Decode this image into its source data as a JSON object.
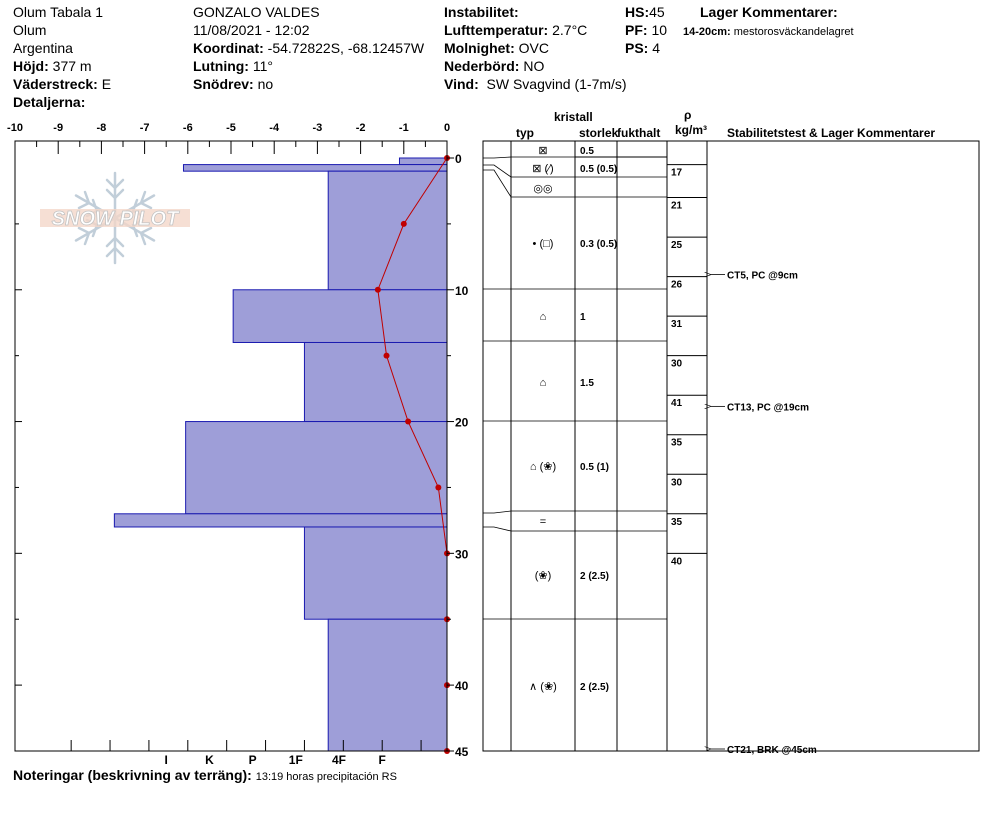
{
  "header": {
    "col1": {
      "site": "Olum Tabala 1",
      "location": "Olum",
      "country": "Argentina",
      "elevation_label": "Höjd:",
      "elevation_value": "377 m",
      "aspect_label": "Väderstreck:",
      "aspect_value": "E",
      "details_label": "Detaljerna:"
    },
    "col2": {
      "observer": "GONZALO VALDES",
      "datetime": "11/08/2021 - 12:02",
      "coord_label": "Koordinat:",
      "coord_value": "-54.72822S, -68.12457W",
      "slope_label": "Lutning:",
      "slope_value": "11°",
      "drift_label": "Snödrev:",
      "drift_value": "no"
    },
    "col3": {
      "stability_label": "Instabilitet:",
      "airtemp_label": "Lufttemperatur:",
      "airtemp_value": "2.7°C",
      "sky_label": "Molnighet:",
      "sky_value": "OVC",
      "precip_label": "Nederbörd:",
      "precip_value": "NO",
      "wind_label": "Vind:",
      "wind_value": "SW Svagvind (1-7m/s)"
    },
    "col4": {
      "hs_label": "HS:",
      "hs_value": "45",
      "pf_label": "PF:",
      "pf_value": "10",
      "ps_label": "PS:",
      "ps_value": "4"
    },
    "col5": {
      "title": "Lager Kommentarer:",
      "comment_range": "14-20cm:",
      "comment_text": "mestorosväckandelagret"
    }
  },
  "logo_text": "SNOW PILOT",
  "table_headers": {
    "crystal": "kristall",
    "type": "typ",
    "size": "storlek",
    "moisture": "fukthalt",
    "rho": "ρ",
    "density_unit": "kg/m³",
    "stability": "Stabilitetstest & Lager Kommentarer"
  },
  "notes": {
    "label": "Noteringar (beskrivning av terräng):",
    "text": "13:19 horas precipitación RS"
  },
  "chart_data": {
    "type": "bar",
    "title": "",
    "xlabel": "",
    "ylabel": "",
    "x_axis_top": {
      "range": [
        -10,
        0
      ],
      "ticks": [
        "-10",
        "-9",
        "-8",
        "-7",
        "-6",
        "-5",
        "-4",
        "-3",
        "-2",
        "-1",
        "0"
      ]
    },
    "x_axis_bottom": {
      "ticks": [
        "I",
        "K",
        "P",
        "1F",
        "4F",
        "F"
      ]
    },
    "y_axis": {
      "range": [
        0,
        45
      ],
      "ticks": [
        "0",
        "10",
        "20",
        "30",
        "40",
        "45"
      ]
    },
    "hardness_layers": [
      {
        "top": 0,
        "bottom": 0.5,
        "hardness_index": 1.1
      },
      {
        "top": 0.5,
        "bottom": 1.0,
        "hardness_index": 6.1
      },
      {
        "top": 1.0,
        "bottom": 10,
        "hardness_index": 2.75
      },
      {
        "top": 10,
        "bottom": 14,
        "hardness_index": 4.95
      },
      {
        "top": 14,
        "bottom": 20,
        "hardness_index": 3.3
      },
      {
        "top": 20,
        "bottom": 27,
        "hardness_index": 6.05
      },
      {
        "top": 27,
        "bottom": 28,
        "hardness_index": 7.7
      },
      {
        "top": 28,
        "bottom": 35,
        "hardness_index": 3.3
      },
      {
        "top": 35,
        "bottom": 45,
        "hardness_index": 2.75
      }
    ],
    "temperature_profile": {
      "depth": [
        0,
        5,
        10,
        15,
        20,
        25,
        30,
        35,
        40,
        45
      ],
      "temp": [
        0,
        -1.0,
        -1.6,
        -1.4,
        -0.9,
        -0.2,
        0,
        0,
        0,
        0
      ]
    },
    "density_readings": [
      {
        "depth_top": 0.5,
        "depth_bottom": 3,
        "value": "17"
      },
      {
        "depth_top": 3,
        "depth_bottom": 6,
        "value": "21"
      },
      {
        "depth_top": 6,
        "depth_bottom": 9,
        "value": "25"
      },
      {
        "depth_top": 9,
        "depth_bottom": 12,
        "value": "26"
      },
      {
        "depth_top": 12,
        "depth_bottom": 15,
        "value": "31"
      },
      {
        "depth_top": 15,
        "depth_bottom": 18,
        "value": "30"
      },
      {
        "depth_top": 18,
        "depth_bottom": 21,
        "value": "41"
      },
      {
        "depth_top": 21,
        "depth_bottom": 24,
        "value": "35"
      },
      {
        "depth_top": 24,
        "depth_bottom": 27,
        "value": "30"
      },
      {
        "depth_top": 27,
        "depth_bottom": 30,
        "value": "35"
      },
      {
        "depth_top": 30,
        "depth_bottom": 45,
        "value": "40"
      }
    ],
    "stability_tests": [
      {
        "depth": 9,
        "label": "CT5, PC @9cm"
      },
      {
        "depth": 19,
        "label": "CT13, PC @19cm"
      },
      {
        "depth": 45,
        "label": "CT21, BRK @45cm"
      }
    ],
    "crystal_rows": [
      {
        "type": "⊠",
        "size": "0.5"
      },
      {
        "type": "⊠ (⁄)",
        "size": "0.5 (0.5)"
      },
      {
        "type": "◎◎",
        "size": ""
      },
      {
        "type": "• (□)",
        "size": "0.3 (0.5)"
      },
      {
        "type": "⌂",
        "size": "1"
      },
      {
        "type": "⌂",
        "size": "1.5"
      },
      {
        "type": "⌂ (❀)",
        "size": "0.5 (1)"
      },
      {
        "type": "=",
        "size": ""
      },
      {
        "type": "(❀)",
        "size": "2 (2.5)"
      },
      {
        "type": "∧ (❀)",
        "size": "2 (2.5)"
      }
    ],
    "colors": {
      "bar_fill": "#9e9ed8",
      "bar_stroke": "#1a1ab0",
      "temp_line": "#c00000"
    }
  }
}
